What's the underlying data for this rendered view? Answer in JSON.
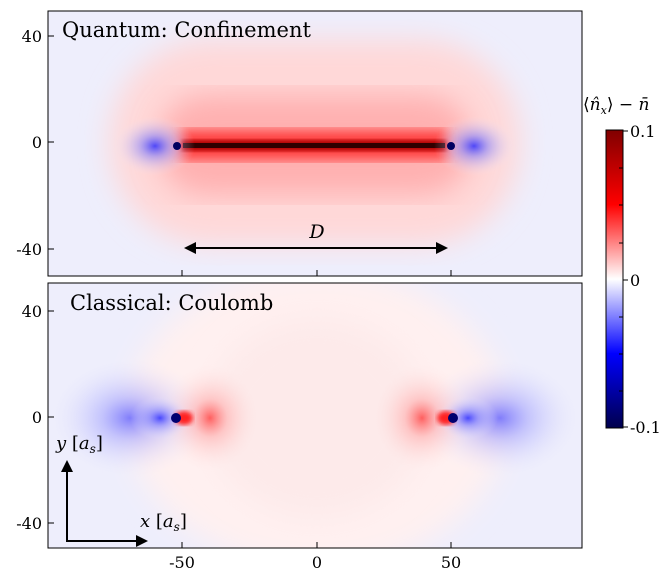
{
  "chart_data": [
    {
      "type": "heatmap",
      "title": "Quantum: Confinement",
      "x_range": [
        -100,
        100
      ],
      "y_range": [
        -50,
        50
      ],
      "x_ticks": [
        -50,
        0,
        50
      ],
      "y_ticks": [
        40,
        0,
        -40
      ],
      "y_tick_labels": [
        "40",
        "0",
        "-40"
      ],
      "charges_x": [
        -50,
        50
      ],
      "annotation": {
        "label": "D",
        "from_x": -50,
        "to_x": 50,
        "y": -40
      },
      "pattern": "string"
    },
    {
      "type": "heatmap",
      "title": "Classical: Coulomb",
      "x_range": [
        -100,
        100
      ],
      "y_range": [
        -50,
        50
      ],
      "x_ticks": [
        -50,
        0,
        50
      ],
      "x_tick_labels": [
        "-50",
        "0",
        "50"
      ],
      "y_ticks": [
        40,
        0,
        -40
      ],
      "y_tick_labels": [
        "40",
        "0",
        "-40"
      ],
      "charges_x": [
        -50,
        50
      ],
      "axis_labels": {
        "x": "x [a_s]",
        "y": "y [a_s]"
      },
      "pattern": "dipole"
    }
  ],
  "colorbar": {
    "label": "⟨n̂_x⟩ − n̄",
    "ticks": [
      0.1,
      0,
      -0.1
    ],
    "tick_labels": [
      "0.1",
      "0",
      "-0.1"
    ],
    "min": -0.1,
    "max": 0.1,
    "colors": {
      "min": "#00004c",
      "neg": "#0000ff",
      "mid": "#ffffff",
      "pos": "#ff0000",
      "max": "#800000"
    }
  }
}
